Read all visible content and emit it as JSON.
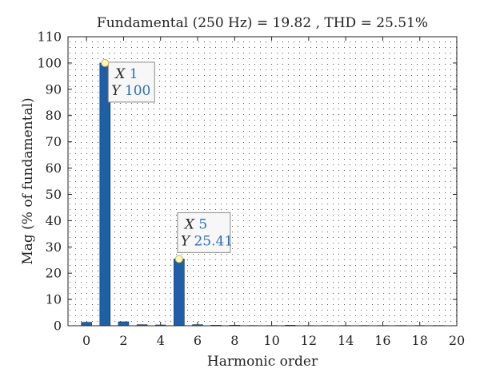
{
  "chart_data": {
    "type": "bar",
    "title": "Fundamental (250 Hz) = 19.82 , THD = 25.51%",
    "xlabel": "Harmonic order",
    "ylabel": "Mag (% of fundamental)",
    "xlim": [
      -1,
      20
    ],
    "ylim": [
      0,
      110
    ],
    "xticks": [
      0,
      2,
      4,
      6,
      8,
      10,
      12,
      14,
      16,
      18,
      20
    ],
    "yticks": [
      0,
      10,
      20,
      30,
      40,
      50,
      60,
      70,
      80,
      90,
      100,
      110
    ],
    "grid": true,
    "x": [
      0,
      1,
      2,
      3,
      4,
      5,
      6,
      7,
      8,
      9,
      10,
      11,
      12,
      13,
      14,
      15,
      16,
      17,
      18,
      19
    ],
    "values": [
      1.3,
      100,
      1.5,
      0.4,
      0.3,
      25.41,
      0.4,
      0.2,
      0.2,
      0.1,
      0.1,
      0.2,
      0.1,
      0.1,
      0.1,
      0.1,
      0.1,
      0.1,
      0.1,
      0.1
    ],
    "bar_color": "#1f5fa8",
    "datatips": [
      {
        "x": 1,
        "y": 100,
        "x_label": "X",
        "y_label": "Y",
        "x_text": "1",
        "y_text": "100"
      },
      {
        "x": 5,
        "y": 25.41,
        "x_label": "X",
        "y_label": "Y",
        "x_text": "5",
        "y_text": "25.41"
      }
    ]
  }
}
